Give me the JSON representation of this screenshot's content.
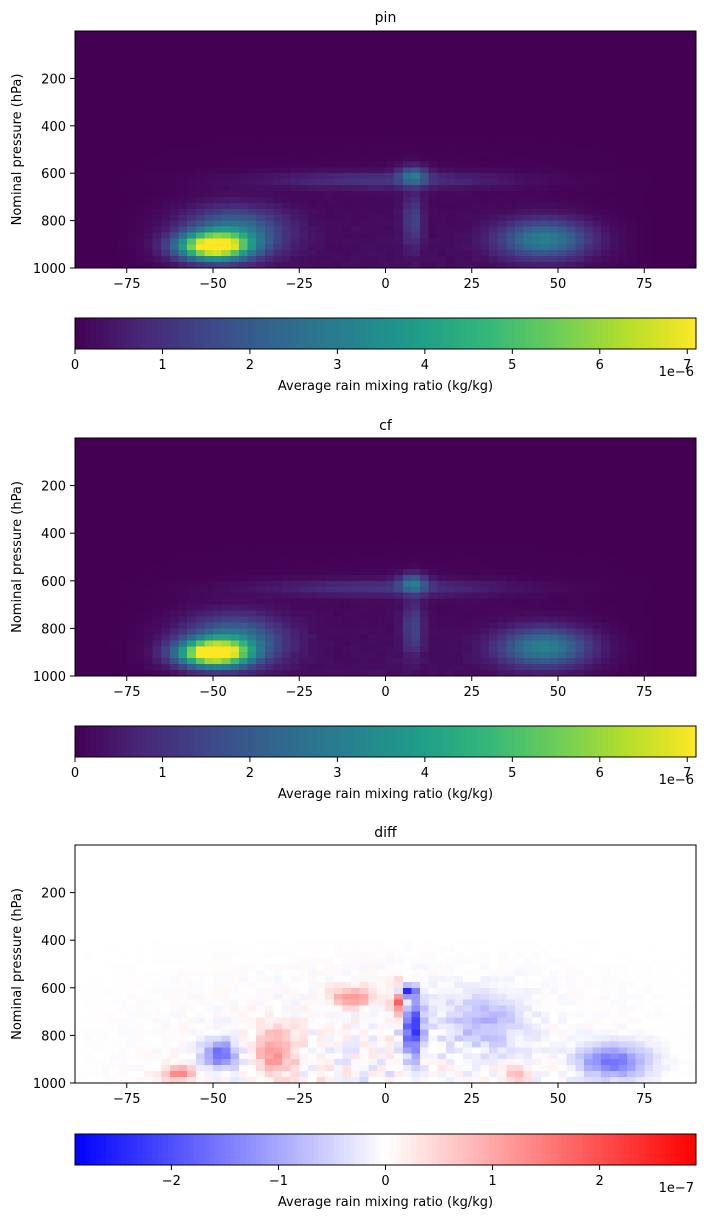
{
  "chart_data": [
    {
      "type": "heatmap",
      "title": "pin",
      "xlabel": "",
      "ylabel": "Nominal pressure (hPa)",
      "xlim": [
        -90,
        90
      ],
      "ylim": [
        1000,
        0
      ],
      "x_ticks": [
        -75,
        -50,
        -25,
        0,
        25,
        50,
        75
      ],
      "x_tick_labels": [
        "−75",
        "−50",
        "−25",
        "0",
        "25",
        "50",
        "75"
      ],
      "y_ticks": [
        200,
        400,
        600,
        800,
        1000
      ],
      "y_tick_labels": [
        "200",
        "400",
        "600",
        "800",
        "1000"
      ],
      "colormap": "viridis",
      "colorbar": {
        "orientation": "horizontal",
        "label": "Average rain mixing ratio (kg/kg)",
        "range": [
          0,
          7.1e-06
        ],
        "ticks": [
          0,
          1,
          2,
          3,
          4,
          5,
          6,
          7
        ],
        "tick_labels": [
          "0",
          "1",
          "2",
          "3",
          "4",
          "5",
          "6",
          "7"
        ],
        "offset_text": "1e−6"
      },
      "features": [
        {
          "lat": -50,
          "pressure": 910,
          "value": 7e-06,
          "lat_width": 10,
          "p_width": 55
        },
        {
          "lat": -44,
          "pressure": 850,
          "value": 2.8e-06,
          "lat_width": 14,
          "p_width": 100
        },
        {
          "lat": 46,
          "pressure": 880,
          "value": 3e-06,
          "lat_width": 13,
          "p_width": 80
        },
        {
          "lat": 8,
          "pressure": 610,
          "value": 2.2e-06,
          "lat_width": 4,
          "p_width": 40
        },
        {
          "lat": 8,
          "pressure": 800,
          "value": 1.3e-06,
          "lat_width": 3,
          "p_width": 110
        },
        {
          "lat": 0,
          "pressure": 630,
          "value": 1e-06,
          "lat_width": 35,
          "p_width": 35
        }
      ]
    },
    {
      "type": "heatmap",
      "title": "cf",
      "xlabel": "",
      "ylabel": "Nominal pressure (hPa)",
      "xlim": [
        -90,
        90
      ],
      "ylim": [
        1000,
        0
      ],
      "x_ticks": [
        -75,
        -50,
        -25,
        0,
        25,
        50,
        75
      ],
      "x_tick_labels": [
        "−75",
        "−50",
        "−25",
        "0",
        "25",
        "50",
        "75"
      ],
      "y_ticks": [
        200,
        400,
        600,
        800,
        1000
      ],
      "y_tick_labels": [
        "200",
        "400",
        "600",
        "800",
        "1000"
      ],
      "colormap": "viridis",
      "colorbar": {
        "orientation": "horizontal",
        "label": "Average rain mixing ratio (kg/kg)",
        "range": [
          0,
          7.1e-06
        ],
        "ticks": [
          0,
          1,
          2,
          3,
          4,
          5,
          6,
          7
        ],
        "tick_labels": [
          "0",
          "1",
          "2",
          "3",
          "4",
          "5",
          "6",
          "7"
        ],
        "offset_text": "1e−6"
      },
      "features": [
        {
          "lat": -50,
          "pressure": 905,
          "value": 7.1e-06,
          "lat_width": 10,
          "p_width": 55
        },
        {
          "lat": -44,
          "pressure": 850,
          "value": 2.8e-06,
          "lat_width": 14,
          "p_width": 100
        },
        {
          "lat": 46,
          "pressure": 880,
          "value": 3.1e-06,
          "lat_width": 13,
          "p_width": 80
        },
        {
          "lat": 8,
          "pressure": 610,
          "value": 2.3e-06,
          "lat_width": 4,
          "p_width": 40
        },
        {
          "lat": 8,
          "pressure": 800,
          "value": 1.4e-06,
          "lat_width": 3,
          "p_width": 110
        },
        {
          "lat": 0,
          "pressure": 630,
          "value": 1e-06,
          "lat_width": 35,
          "p_width": 35
        }
      ]
    },
    {
      "type": "heatmap",
      "title": "diff",
      "xlabel": "",
      "ylabel": "Nominal pressure (hPa)",
      "xlim": [
        -90,
        90
      ],
      "ylim": [
        1000,
        0
      ],
      "x_ticks": [
        -75,
        -50,
        -25,
        0,
        25,
        50,
        75
      ],
      "x_tick_labels": [
        "−75",
        "−50",
        "−25",
        "0",
        "25",
        "50",
        "75"
      ],
      "y_ticks": [
        200,
        400,
        600,
        800,
        1000
      ],
      "y_tick_labels": [
        "200",
        "400",
        "600",
        "800",
        "1000"
      ],
      "colormap": "bwr",
      "colorbar": {
        "orientation": "horizontal",
        "label": "Average rain mixing ratio (kg/kg)",
        "range": [
          -2.9e-07,
          2.9e-07
        ],
        "ticks": [
          -2,
          -1,
          0,
          1,
          2
        ],
        "tick_labels": [
          "−2",
          "−1",
          "0",
          "1",
          "2"
        ],
        "offset_text": "1e−7"
      },
      "features": [
        {
          "lat": 6,
          "pressure": 615,
          "value": -2.8e-07,
          "lat_width": 3,
          "p_width": 25
        },
        {
          "lat": 8,
          "pressure": 770,
          "value": -2.3e-07,
          "lat_width": 3,
          "p_width": 120
        },
        {
          "lat": 4,
          "pressure": 650,
          "value": 2e-07,
          "lat_width": 2,
          "p_width": 70
        },
        {
          "lat": -10,
          "pressure": 640,
          "value": 1.3e-07,
          "lat_width": 6,
          "p_width": 40
        },
        {
          "lat": -48,
          "pressure": 880,
          "value": -1.7e-07,
          "lat_width": 5,
          "p_width": 60
        },
        {
          "lat": -32,
          "pressure": 870,
          "value": 1.2e-07,
          "lat_width": 6,
          "p_width": 100
        },
        {
          "lat": -60,
          "pressure": 960,
          "value": 1.3e-07,
          "lat_width": 5,
          "p_width": 30
        },
        {
          "lat": 66,
          "pressure": 910,
          "value": -1.6e-07,
          "lat_width": 10,
          "p_width": 70
        },
        {
          "lat": 28,
          "pressure": 740,
          "value": -8e-08,
          "lat_width": 12,
          "p_width": 120
        },
        {
          "lat": 38,
          "pressure": 960,
          "value": 1.1e-07,
          "lat_width": 3,
          "p_width": 30
        }
      ]
    }
  ]
}
